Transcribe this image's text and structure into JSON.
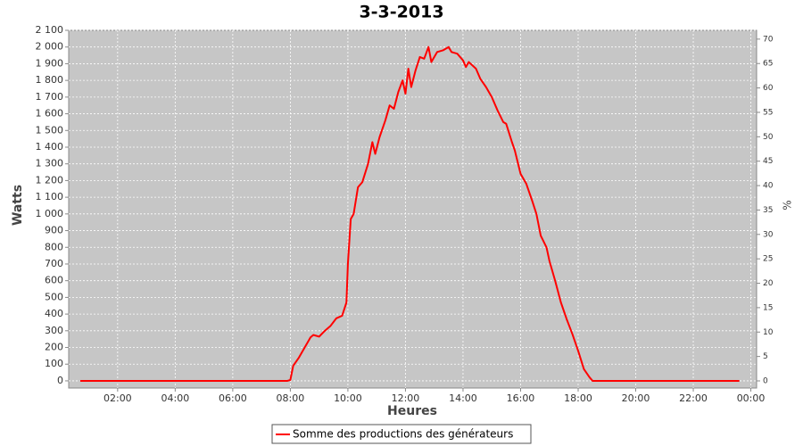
{
  "chart_data": {
    "type": "line",
    "title": "3-3-2013",
    "xlabel": "Heures",
    "ylabel": "Watts",
    "y2label": "%",
    "x": [
      0.7,
      7.9,
      8.0,
      8.1,
      8.3,
      8.5,
      8.7,
      8.8,
      9.0,
      9.2,
      9.4,
      9.6,
      9.8,
      9.95,
      10.0,
      10.1,
      10.2,
      10.35,
      10.5,
      10.7,
      10.85,
      10.95,
      11.1,
      11.3,
      11.45,
      11.6,
      11.75,
      11.9,
      12.0,
      12.1,
      12.2,
      12.35,
      12.5,
      12.65,
      12.8,
      12.9,
      13.1,
      13.3,
      13.5,
      13.6,
      13.8,
      14.0,
      14.1,
      14.2,
      14.45,
      14.6,
      14.8,
      15.0,
      15.2,
      15.4,
      15.5,
      15.7,
      15.8,
      16.0,
      16.2,
      16.4,
      16.55,
      16.7,
      16.9,
      17.0,
      17.2,
      17.4,
      17.6,
      17.8,
      18.0,
      18.2,
      18.4,
      18.5,
      23.6
    ],
    "series": [
      {
        "name": "Somme des productions des  générateurs",
        "color": "#ff0000",
        "values": [
          0,
          0,
          5,
          90,
          140,
          200,
          260,
          275,
          265,
          300,
          330,
          375,
          390,
          470,
          700,
          970,
          1000,
          1160,
          1190,
          1300,
          1430,
          1360,
          1460,
          1560,
          1650,
          1630,
          1730,
          1800,
          1720,
          1870,
          1760,
          1860,
          1940,
          1930,
          2000,
          1910,
          1970,
          1980,
          2000,
          1970,
          1960,
          1920,
          1880,
          1910,
          1870,
          1810,
          1760,
          1700,
          1620,
          1550,
          1540,
          1430,
          1380,
          1240,
          1180,
          1080,
          1000,
          870,
          800,
          720,
          600,
          470,
          370,
          280,
          180,
          70,
          20,
          0,
          0
        ]
      }
    ],
    "xlim": [
      0.3,
      24.2
    ],
    "xticks": [
      {
        "value": 2,
        "label": "02:00"
      },
      {
        "value": 4,
        "label": "04:00"
      },
      {
        "value": 6,
        "label": "06:00"
      },
      {
        "value": 8,
        "label": "08:00"
      },
      {
        "value": 10,
        "label": "10:00"
      },
      {
        "value": 12,
        "label": "12:00"
      },
      {
        "value": 14,
        "label": "14:00"
      },
      {
        "value": 16,
        "label": "16:00"
      },
      {
        "value": 18,
        "label": "18:00"
      },
      {
        "value": 20,
        "label": "20:00"
      },
      {
        "value": 22,
        "label": "22:00"
      },
      {
        "value": 24,
        "label": "00:00"
      }
    ],
    "ylim": [
      -43,
      2100
    ],
    "yticks": [
      0,
      100,
      200,
      300,
      400,
      500,
      600,
      700,
      800,
      900,
      {
        "value": 1000,
        "label": "1 000"
      },
      {
        "value": 1100,
        "label": "1 100"
      },
      {
        "value": 1200,
        "label": "1 200"
      },
      {
        "value": 1300,
        "label": "1 300"
      },
      {
        "value": 1400,
        "label": "1 400"
      },
      {
        "value": 1500,
        "label": "1 500"
      },
      {
        "value": 1600,
        "label": "1 600"
      },
      {
        "value": 1700,
        "label": "1 700"
      },
      {
        "value": 1800,
        "label": "1 800"
      },
      {
        "value": 1900,
        "label": "1 900"
      },
      {
        "value": 2000,
        "label": "2 000"
      },
      {
        "value": 2100,
        "label": "2 100"
      }
    ],
    "y2lim": [
      -1.46,
      71.8
    ],
    "y2ticks": [
      0,
      5,
      10,
      15,
      20,
      25,
      30,
      35,
      40,
      45,
      50,
      55,
      60,
      65,
      70
    ],
    "grid": true,
    "legend": "bottom"
  }
}
